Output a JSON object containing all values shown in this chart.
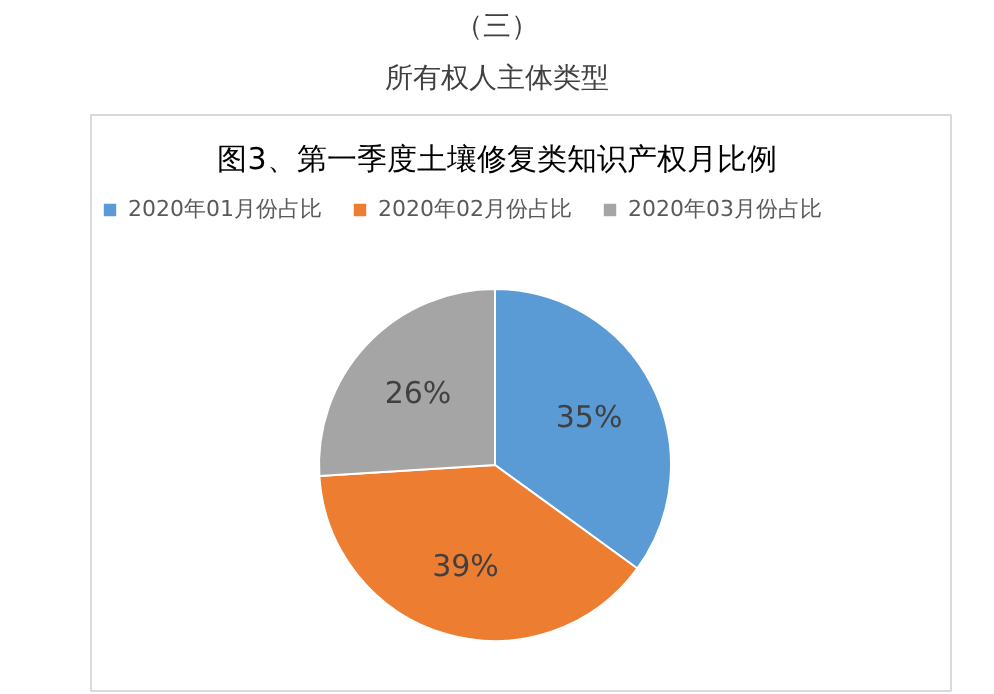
{
  "chart_data": {
    "type": "pie",
    "title": "图3、第一季度土壤修复类知识产权月比例",
    "annotations": [
      "（三）",
      "所有权人主体类型"
    ],
    "categories": [
      "2020年01月份占比",
      "2020年02月份占比",
      "2020年03月份占比"
    ],
    "values": [
      35,
      39,
      26
    ],
    "colors": [
      "#5b9bd5",
      "#ed7d31",
      "#a5a5a5"
    ],
    "value_labels": [
      "35%",
      "39%",
      "26%"
    ],
    "legend": "top"
  }
}
